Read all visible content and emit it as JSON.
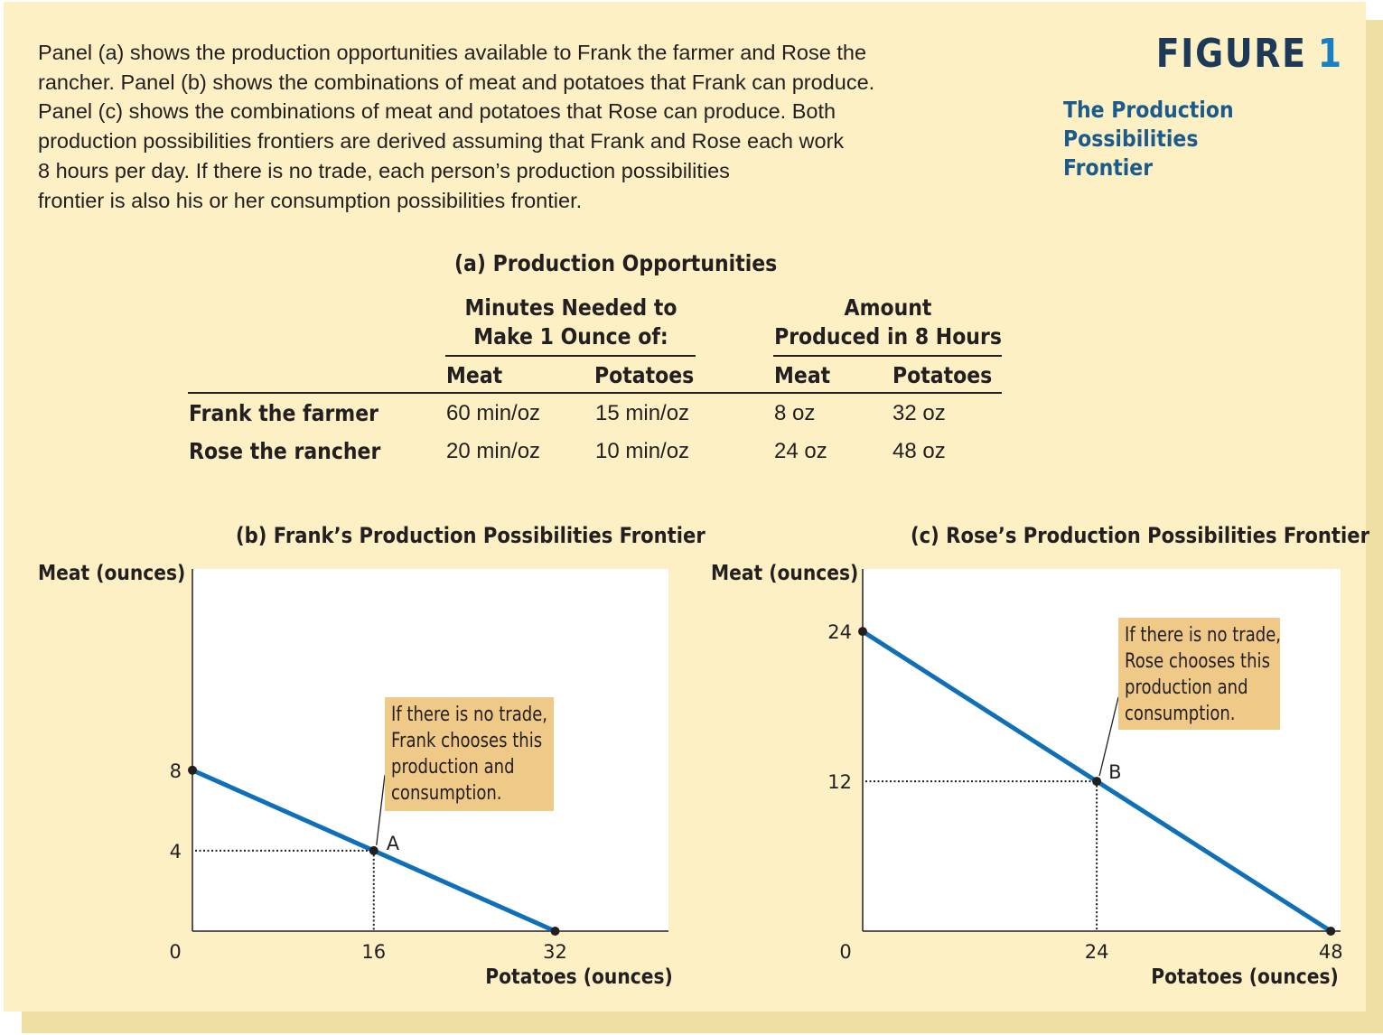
{
  "caption_lines": [
    "Panel (a) shows the production opportunities available to Frank the farmer and Rose the",
    "rancher. Panel (b) shows the combinations of meat and potatoes that Frank can produce.",
    "Panel (c) shows the combinations of meat and potatoes that Rose can produce. Both",
    "production possibilities frontiers are derived assuming that Frank and Rose each work",
    "8 hours per day. If there is no trade, each person’s production possibilities",
    "frontier is also his or her consumption possibilities frontier."
  ],
  "figure": {
    "label": "FIGURE",
    "number": "1",
    "subtitle_lines": [
      "The Production Possibilities",
      "Frontier"
    ]
  },
  "colors": {
    "background": "#fdf0c4",
    "frontier_line": "#0f70b8",
    "note_box": "#efc987",
    "figure_number": "#1a7fc1",
    "figure_label": "#1c3a57"
  },
  "chart_data": [
    {
      "type": "table",
      "title": "(a) Production Opportunities",
      "group_headers": [
        [
          "Minutes Needed to",
          "Make 1 Ounce of:"
        ],
        [
          "Amount",
          "Produced in 8 Hours"
        ]
      ],
      "columns": [
        "Meat",
        "Potatoes",
        "Meat",
        "Potatoes"
      ],
      "rows": [
        {
          "label": "Frank the farmer",
          "cells": [
            "60 min/oz",
            "15 min/oz",
            "8 oz",
            "32 oz"
          ]
        },
        {
          "label": "Rose the rancher",
          "cells": [
            "20 min/oz",
            "10 min/oz",
            "24 oz",
            "48 oz"
          ]
        }
      ]
    },
    {
      "type": "line",
      "title": "(b) Frank’s Production Possibilities Frontier",
      "xlabel": "Potatoes (ounces)",
      "ylabel": "Meat (ounces)",
      "xlim": [
        0,
        42
      ],
      "ylim": [
        0,
        18
      ],
      "xticks": [
        0,
        16,
        32
      ],
      "yticks": [
        4,
        8
      ],
      "grid": false,
      "series": [
        {
          "x": [
            0,
            32
          ],
          "y": [
            8,
            0
          ]
        }
      ],
      "endpoints": [
        {
          "x": 0,
          "y": 8
        },
        {
          "x": 32,
          "y": 0
        }
      ],
      "point": {
        "label": "A",
        "x": 16,
        "y": 4
      },
      "annotation": [
        "If there is no trade,",
        "Frank chooses this",
        "production and",
        "consumption."
      ]
    },
    {
      "type": "line",
      "title": "(c) Rose’s Production Possibilities Frontier",
      "xlabel": "Potatoes (ounces)",
      "ylabel": "Meat (ounces)",
      "xlim": [
        0,
        49
      ],
      "ylim": [
        0,
        29
      ],
      "xticks": [
        0,
        24,
        48
      ],
      "yticks": [
        12,
        24
      ],
      "grid": false,
      "series": [
        {
          "x": [
            0,
            48
          ],
          "y": [
            24,
            0
          ]
        }
      ],
      "endpoints": [
        {
          "x": 0,
          "y": 24
        },
        {
          "x": 48,
          "y": 0
        }
      ],
      "point": {
        "label": "B",
        "x": 24,
        "y": 12
      },
      "annotation": [
        "If there is no trade,",
        "Rose chooses this",
        "production and",
        "consumption."
      ]
    }
  ]
}
